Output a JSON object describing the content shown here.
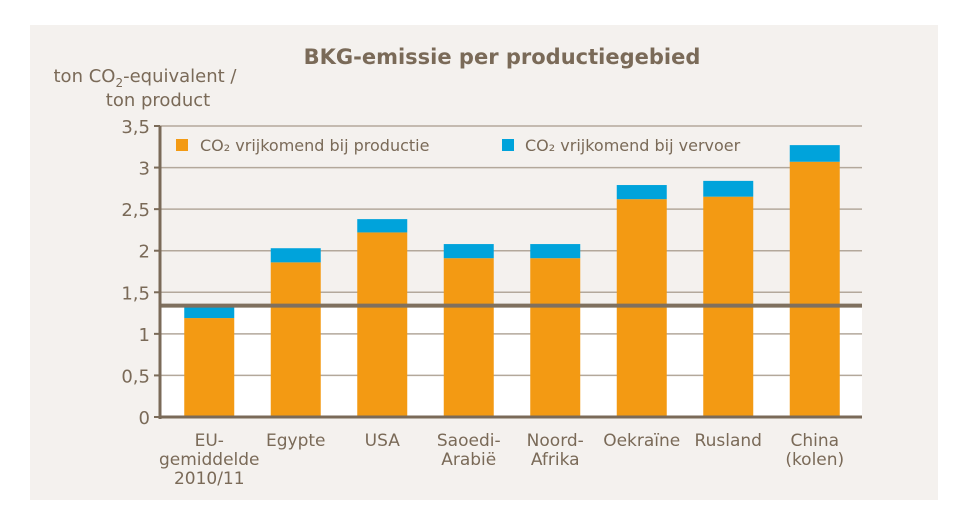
{
  "chart_data": {
    "type": "bar",
    "stacked": true,
    "title": "BKG-emissie per productiegebied",
    "ylabel_line1": "ton CO",
    "ylabel_sub": "2",
    "ylabel_line1_rest": "-equivalent /",
    "ylabel_line2": "ton product",
    "ylim": [
      0,
      3.5
    ],
    "yticks": [
      "0",
      "0,5",
      "1",
      "1,5",
      "2",
      "2,5",
      "3",
      "3,5"
    ],
    "categories": [
      [
        "EU-",
        "gemiddelde",
        "2010/11"
      ],
      [
        "Egypte"
      ],
      [
        "USA"
      ],
      [
        "Saoedi-",
        "Arabië"
      ],
      [
        "Noord-",
        "Afrika"
      ],
      [
        "Oekraïne"
      ],
      [
        "Rusland"
      ],
      [
        "China",
        "(kolen)"
      ]
    ],
    "series": [
      {
        "name": "CO₂ vrijkomend bij productie",
        "color": "#f39a13",
        "values": [
          1.19,
          1.86,
          2.22,
          1.91,
          1.91,
          2.62,
          2.65,
          3.07
        ]
      },
      {
        "name": "CO₂ vrijkomend bij vervoer",
        "color": "#00a3db",
        "values": [
          0.16,
          0.17,
          0.16,
          0.17,
          0.17,
          0.17,
          0.19,
          0.2
        ]
      }
    ],
    "reference_line": 1.34,
    "grid": true,
    "legend": "top"
  }
}
